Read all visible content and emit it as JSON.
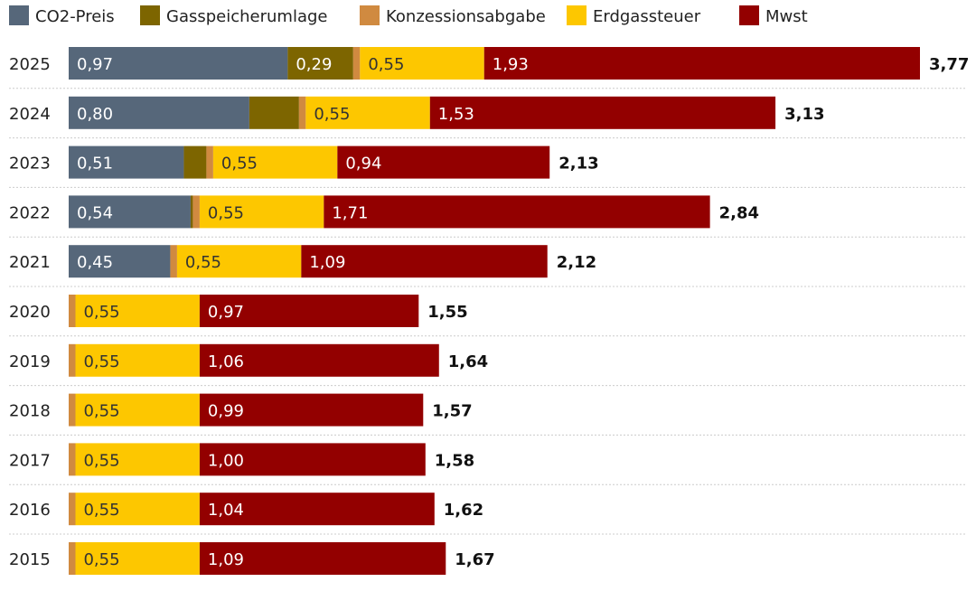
{
  "chart_data": {
    "type": "bar",
    "orientation": "horizontal",
    "stacked": true,
    "legend_position": "top-left",
    "grid": false,
    "xlim": [
      0,
      3.77
    ],
    "categories": [
      "2025",
      "2024",
      "2023",
      "2022",
      "2021",
      "2020",
      "2019",
      "2018",
      "2017",
      "2016",
      "2015"
    ],
    "series": [
      {
        "name": "CO2-Preis",
        "color": "#56677a",
        "label_color": "#ffffff",
        "values": [
          0.97,
          0.8,
          0.51,
          0.54,
          0.45,
          0,
          0,
          0,
          0,
          0,
          0
        ],
        "labels": [
          "0,97",
          "0,80",
          "0,51",
          "0,54",
          "0,45",
          "",
          "",
          "",
          "",
          "",
          ""
        ]
      },
      {
        "name": "Gasspeicherumlage",
        "color": "#7d6500",
        "label_color": "#ffffff",
        "values": [
          0.29,
          0.22,
          0.1,
          0.01,
          0,
          0,
          0,
          0,
          0,
          0,
          0
        ],
        "labels": [
          "0,29",
          "",
          "",
          "",
          "",
          "",
          "",
          "",
          "",
          "",
          ""
        ]
      },
      {
        "name": "Konzessionsabgabe",
        "color": "#d08a40",
        "label_color": "#333333",
        "values": [
          0.03,
          0.03,
          0.03,
          0.03,
          0.03,
          0.03,
          0.03,
          0.03,
          0.03,
          0.03,
          0.03
        ],
        "labels": [
          "",
          "",
          "",
          "",
          "",
          "",
          "",
          "",
          "",
          "",
          ""
        ]
      },
      {
        "name": "Erdgassteuer",
        "color": "#fdc700",
        "label_color": "#333333",
        "values": [
          0.55,
          0.55,
          0.55,
          0.55,
          0.55,
          0.55,
          0.55,
          0.55,
          0.55,
          0.55,
          0.55
        ],
        "labels": [
          "0,55",
          "0,55",
          "0,55",
          "0,55",
          "0,55",
          "0,55",
          "0,55",
          "0,55",
          "0,55",
          "0,55",
          "0,55"
        ]
      },
      {
        "name": "Mwst",
        "color": "#930000",
        "label_color": "#ffffff",
        "values": [
          1.93,
          1.53,
          0.94,
          1.71,
          1.09,
          0.97,
          1.06,
          0.99,
          1.0,
          1.04,
          1.09
        ],
        "labels": [
          "1,93",
          "1,53",
          "0,94",
          "1,71",
          "1,09",
          "0,97",
          "1,06",
          "0,99",
          "1,00",
          "1,04",
          "1,09"
        ]
      }
    ],
    "totals": [
      "3,77",
      "3,13",
      "2,13",
      "2,84",
      "2,12",
      "1,55",
      "1,64",
      "1,57",
      "1,58",
      "1,62",
      "1,67"
    ],
    "total_values": [
      3.77,
      3.13,
      2.13,
      2.84,
      2.12,
      1.55,
      1.64,
      1.57,
      1.58,
      1.62,
      1.67
    ]
  }
}
